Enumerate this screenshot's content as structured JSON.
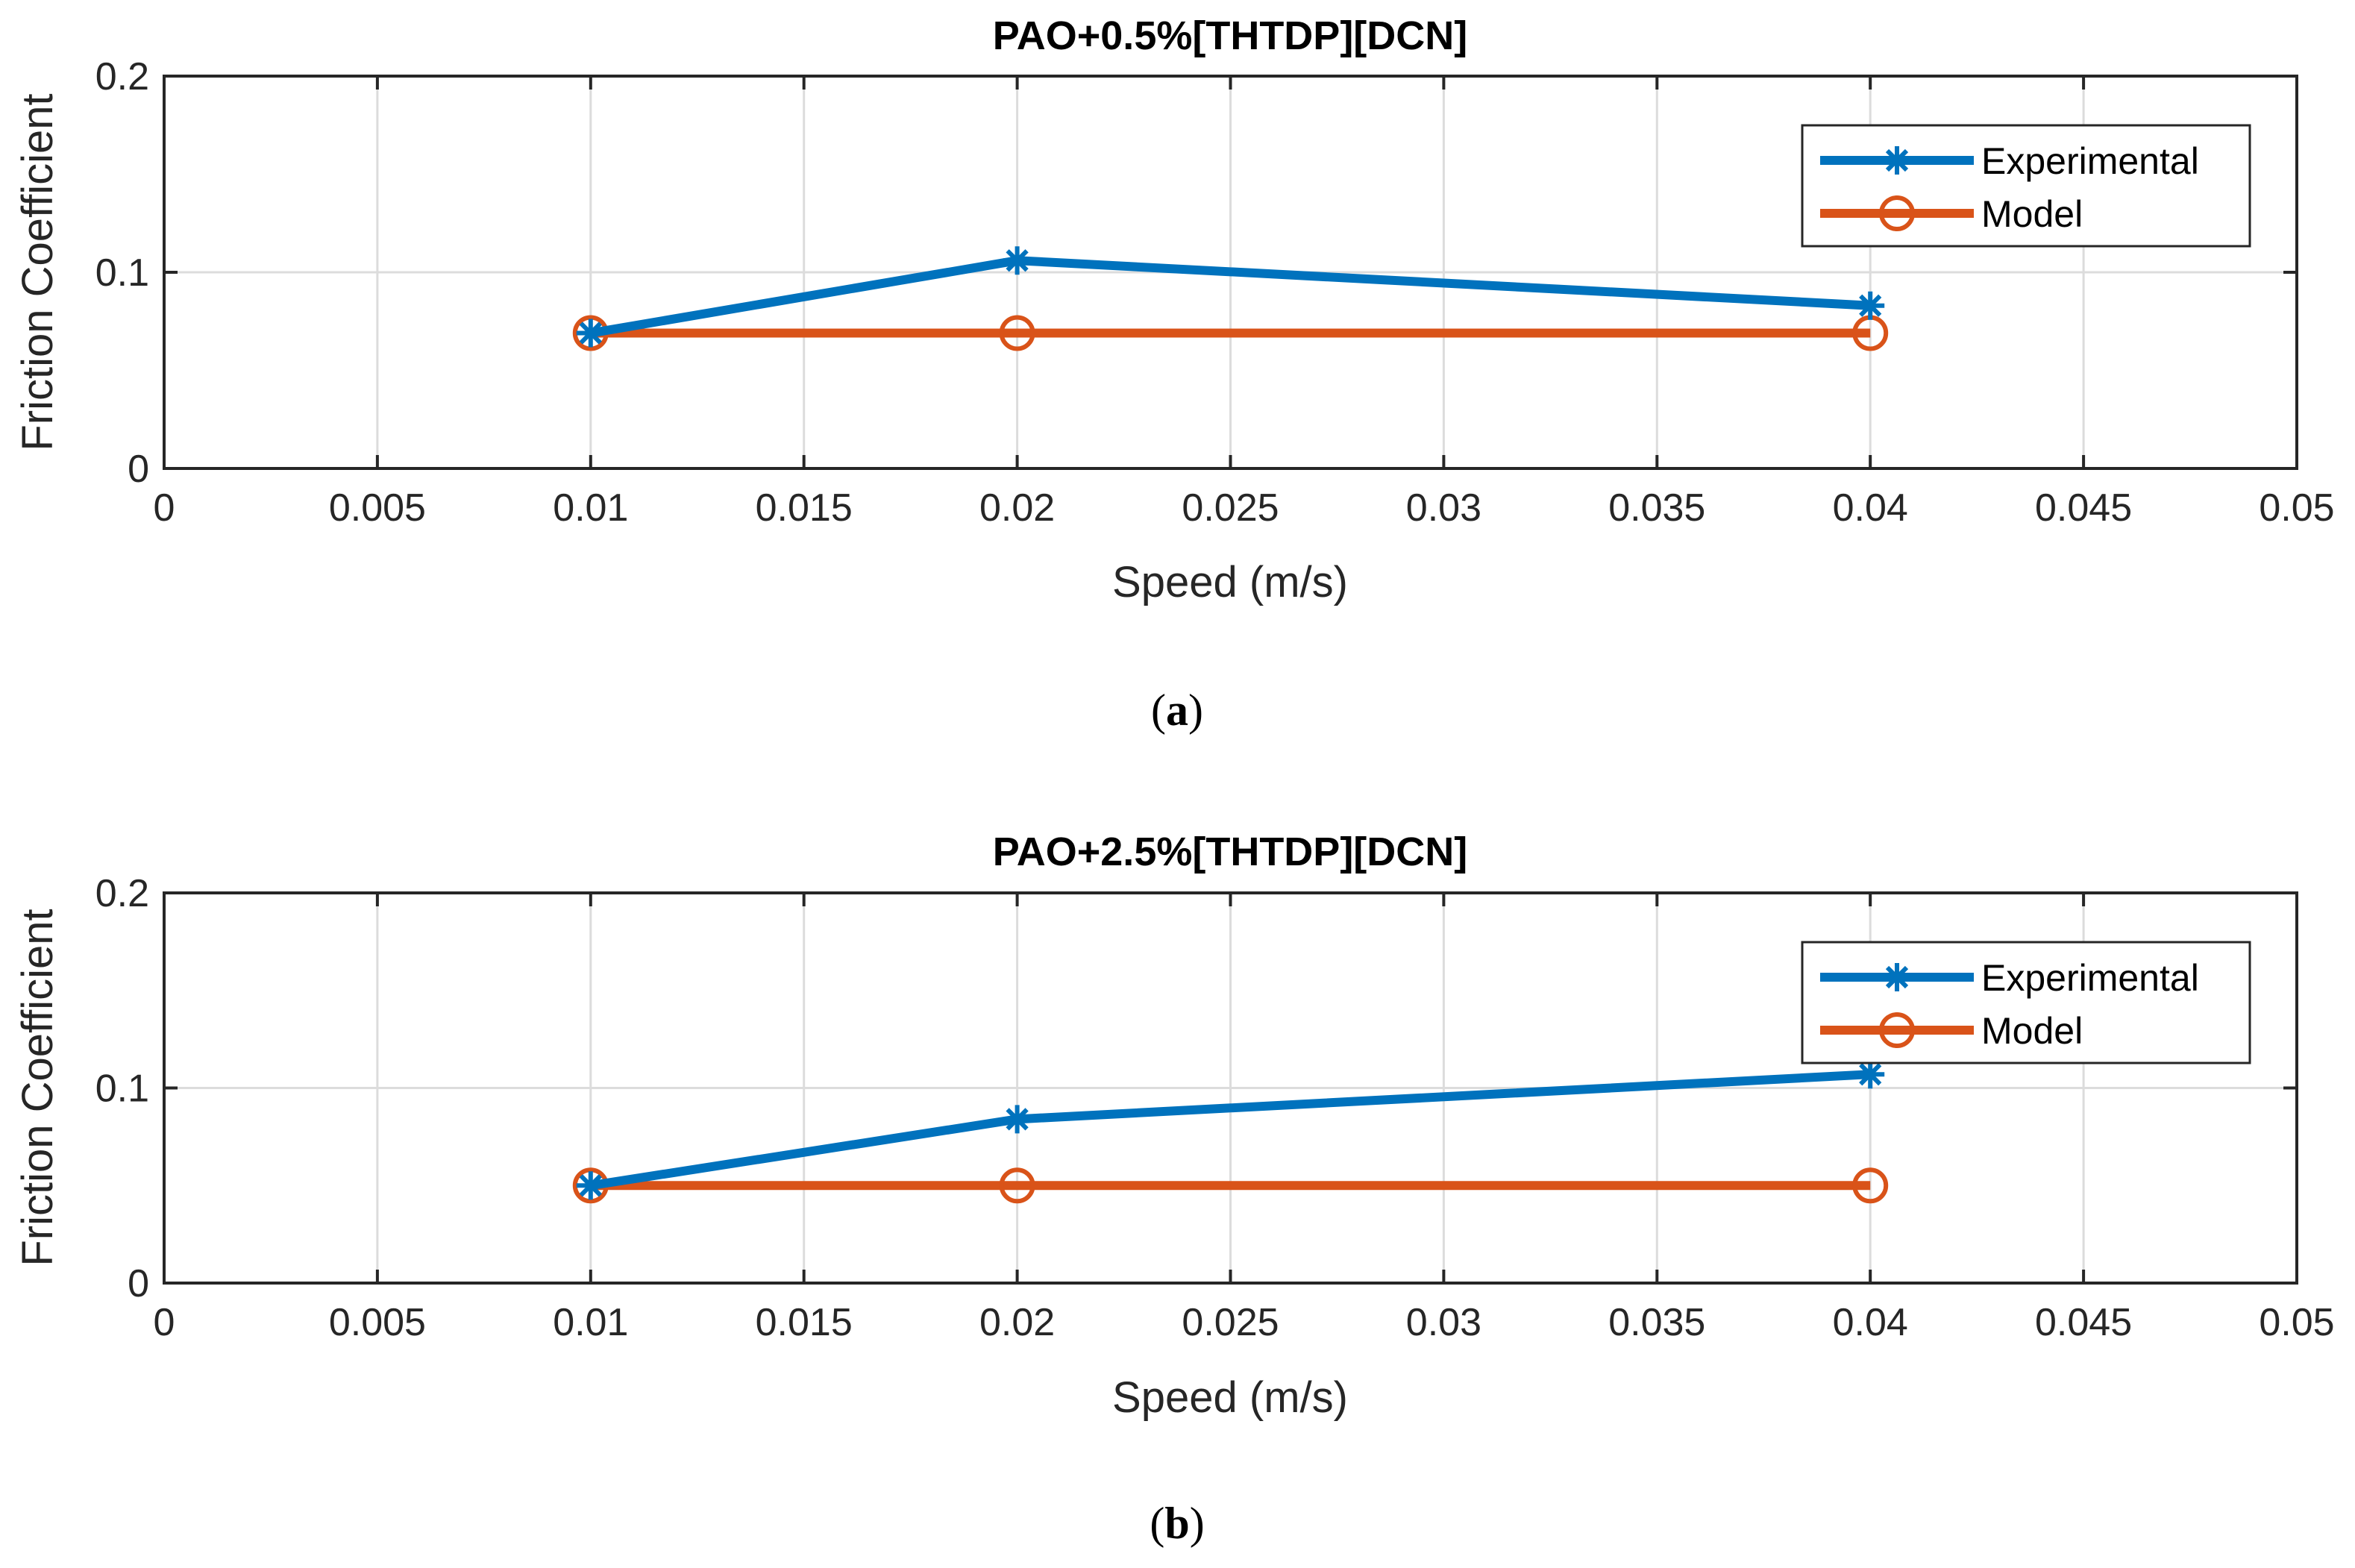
{
  "chart_data": [
    {
      "type": "line",
      "title": "PAO+0.5%[THTDP][DCN]",
      "xlabel": "Speed (m/s)",
      "ylabel": "Friction Coefficient",
      "xlim": [
        0,
        0.05
      ],
      "ylim": [
        0,
        0.2
      ],
      "xticks": [
        0,
        0.005,
        0.01,
        0.015,
        0.02,
        0.025,
        0.03,
        0.035,
        0.04,
        0.045,
        0.05
      ],
      "xtick_labels": [
        "0",
        "0.005",
        "0.01",
        "0.015",
        "0.02",
        "0.025",
        "0.03",
        "0.035",
        "0.04",
        "0.045",
        "0.05"
      ],
      "yticks": [
        0,
        0.1,
        0.2
      ],
      "ytick_labels": [
        "0",
        "0.1",
        "0.2"
      ],
      "grid": true,
      "legend_position": "top-right",
      "caption_letter": "a",
      "series": [
        {
          "name": "Experimental",
          "marker": "asterisk",
          "color": "#0072BD",
          "x": [
            0.01,
            0.02,
            0.04
          ],
          "y": [
            0.069,
            0.106,
            0.083
          ]
        },
        {
          "name": "Model",
          "marker": "circle",
          "color": "#D95319",
          "x": [
            0.01,
            0.02,
            0.04
          ],
          "y": [
            0.069,
            0.069,
            0.069
          ]
        }
      ]
    },
    {
      "type": "line",
      "title": "PAO+2.5%[THTDP][DCN]",
      "xlabel": "Speed (m/s)",
      "ylabel": "Friction Coefficient",
      "xlim": [
        0,
        0.05
      ],
      "ylim": [
        0,
        0.2
      ],
      "xticks": [
        0,
        0.005,
        0.01,
        0.015,
        0.02,
        0.025,
        0.03,
        0.035,
        0.04,
        0.045,
        0.05
      ],
      "xtick_labels": [
        "0",
        "0.005",
        "0.01",
        "0.015",
        "0.02",
        "0.025",
        "0.03",
        "0.035",
        "0.04",
        "0.045",
        "0.05"
      ],
      "yticks": [
        0,
        0.1,
        0.2
      ],
      "ytick_labels": [
        "0",
        "0.1",
        "0.2"
      ],
      "grid": true,
      "legend_position": "top-right",
      "caption_letter": "b",
      "series": [
        {
          "name": "Experimental",
          "marker": "asterisk",
          "color": "#0072BD",
          "x": [
            0.01,
            0.02,
            0.04
          ],
          "y": [
            0.05,
            0.084,
            0.107
          ]
        },
        {
          "name": "Model",
          "marker": "circle",
          "color": "#D95319",
          "x": [
            0.01,
            0.02,
            0.04
          ],
          "y": [
            0.05,
            0.05,
            0.05
          ]
        }
      ]
    }
  ]
}
